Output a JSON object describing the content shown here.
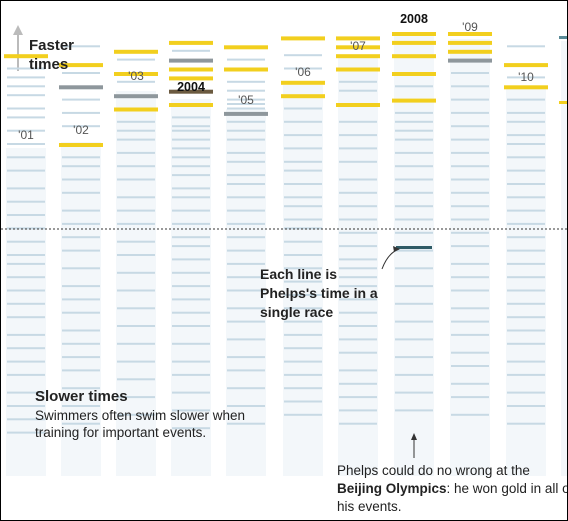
{
  "chart_data": {
    "type": "strip",
    "direction_labels": {
      "faster": "Faster times",
      "slower": "Slower times"
    },
    "slower_note": "Swimmers often swim slower when training for important events.",
    "annotations": {
      "line_note": "Each line is Phelps's time in a single race",
      "beijing_prefix": "Phelps could do no wrong at the ",
      "beijing_bold": "Beijing Olympics",
      "beijing_suffix": ": he won gold in all of his events."
    },
    "colors": {
      "gold": "#f2cf1e",
      "silver": "#8e979c",
      "bronze": "#6b5a40",
      "race": "#c7d9e4",
      "column_bg": "#f3f7fa",
      "highlight": "#2f5b66",
      "threshold": "#333333"
    },
    "years": [
      {
        "label": "'01",
        "bold": false,
        "gold": [
          0.05
        ],
        "silver": [],
        "bronze": [],
        "races": [
          0.08,
          0.1,
          0.12,
          0.14,
          0.17,
          0.19,
          0.22,
          0.25,
          0.28,
          0.31,
          0.35,
          0.38,
          0.41,
          0.44,
          0.47,
          0.5,
          0.52,
          0.55,
          0.58,
          0.61,
          0.64,
          0.68,
          0.71,
          0.74,
          0.77,
          0.81,
          0.84,
          0.87,
          0.9
        ]
      },
      {
        "label": "'02",
        "bold": false,
        "gold": [
          0.07,
          0.25
        ],
        "silver": [
          0.12
        ],
        "bronze": [],
        "races": [
          0.03,
          0.09,
          0.15,
          0.18,
          0.21,
          0.28,
          0.3,
          0.33,
          0.36,
          0.4,
          0.43,
          0.46,
          0.49,
          0.53,
          0.57,
          0.6,
          0.63,
          0.67,
          0.7,
          0.73,
          0.76,
          0.8,
          0.84,
          0.88
        ]
      },
      {
        "label": "'03",
        "bold": false,
        "gold": [
          0.04,
          0.09,
          0.17
        ],
        "silver": [
          0.14
        ],
        "bronze": [],
        "races": [
          0.06,
          0.11,
          0.2,
          0.22,
          0.24,
          0.27,
          0.3,
          0.33,
          0.37,
          0.4,
          0.43,
          0.47,
          0.5,
          0.54,
          0.58,
          0.62,
          0.66,
          0.7,
          0.74,
          0.78,
          0.82,
          0.86
        ]
      },
      {
        "label": "2004",
        "bold": true,
        "gold": [
          0.02,
          0.08,
          0.1,
          0.16
        ],
        "silver": [
          0.06
        ],
        "bronze": [
          0.13
        ],
        "races": [
          0.04,
          0.19,
          0.21,
          0.22,
          0.24,
          0.26,
          0.28,
          0.3,
          0.32,
          0.35,
          0.37,
          0.4,
          0.43,
          0.46,
          0.48,
          0.51,
          0.54,
          0.57,
          0.6,
          0.63,
          0.66,
          0.7,
          0.74,
          0.77,
          0.81,
          0.85,
          0.89
        ]
      },
      {
        "label": "'05",
        "bold": false,
        "gold": [
          0.03,
          0.08
        ],
        "silver": [
          0.18
        ],
        "bronze": [],
        "races": [
          0.06,
          0.11,
          0.13,
          0.15,
          0.16,
          0.17,
          0.2,
          0.22,
          0.24,
          0.27,
          0.29,
          0.32,
          0.34,
          0.37,
          0.4,
          0.43,
          0.46,
          0.49,
          0.52,
          0.55,
          0.58,
          0.62,
          0.65,
          0.69,
          0.73,
          0.76,
          0.8,
          0.84,
          0.88
        ]
      },
      {
        "label": "'06",
        "bold": false,
        "gold": [
          0.01,
          0.11,
          0.14
        ],
        "silver": [],
        "bronze": [],
        "races": [
          0.05,
          0.08,
          0.17,
          0.2,
          0.23,
          0.26,
          0.29,
          0.31,
          0.34,
          0.37,
          0.39,
          0.42,
          0.44,
          0.47,
          0.5,
          0.53,
          0.56,
          0.59,
          0.62,
          0.65,
          0.68,
          0.71,
          0.74,
          0.77,
          0.8,
          0.83,
          0.86
        ]
      },
      {
        "label": "'07",
        "bold": false,
        "gold": [
          0.01,
          0.03,
          0.05,
          0.08,
          0.16
        ],
        "silver": [],
        "bronze": [],
        "races": [
          0.11,
          0.13,
          0.2,
          0.23,
          0.26,
          0.29,
          0.33,
          0.36,
          0.39,
          0.42,
          0.45,
          0.48,
          0.51,
          0.53,
          0.55,
          0.57,
          0.6,
          0.63,
          0.66,
          0.69,
          0.72,
          0.76,
          0.79,
          0.82,
          0.85,
          0.88
        ]
      },
      {
        "label": "2008",
        "bold": true,
        "gold": [
          0.0,
          0.02,
          0.05,
          0.09,
          0.15
        ],
        "silver": [],
        "bronze": [],
        "races": [
          0.12,
          0.18,
          0.2,
          0.22,
          0.24,
          0.27,
          0.3,
          0.33,
          0.36,
          0.39,
          0.42,
          0.45,
          0.49,
          0.53,
          0.57,
          0.61,
          0.65,
          0.69,
          0.73,
          0.77,
          0.81,
          0.85
        ]
      },
      {
        "label": "'09",
        "bold": false,
        "gold": [
          0.0,
          0.02,
          0.04
        ],
        "silver": [
          0.06
        ],
        "bronze": [],
        "races": [
          0.09,
          0.12,
          0.15,
          0.18,
          0.21,
          0.24,
          0.27,
          0.3,
          0.33,
          0.36,
          0.39,
          0.42,
          0.45,
          0.48,
          0.52,
          0.55,
          0.58,
          0.62,
          0.65,
          0.68,
          0.72,
          0.75,
          0.79,
          0.82,
          0.86
        ]
      },
      {
        "label": "'10",
        "bold": false,
        "gold": [
          0.07,
          0.12
        ],
        "silver": [],
        "bronze": [],
        "races": [
          0.03,
          0.1,
          0.15,
          0.18,
          0.2,
          0.23,
          0.25,
          0.28,
          0.31,
          0.34,
          0.37,
          0.4,
          0.43,
          0.46,
          0.49,
          0.52,
          0.55,
          0.58,
          0.61,
          0.64,
          0.67,
          0.7,
          0.74,
          0.77,
          0.81,
          0.84,
          0.88
        ]
      }
    ]
  }
}
